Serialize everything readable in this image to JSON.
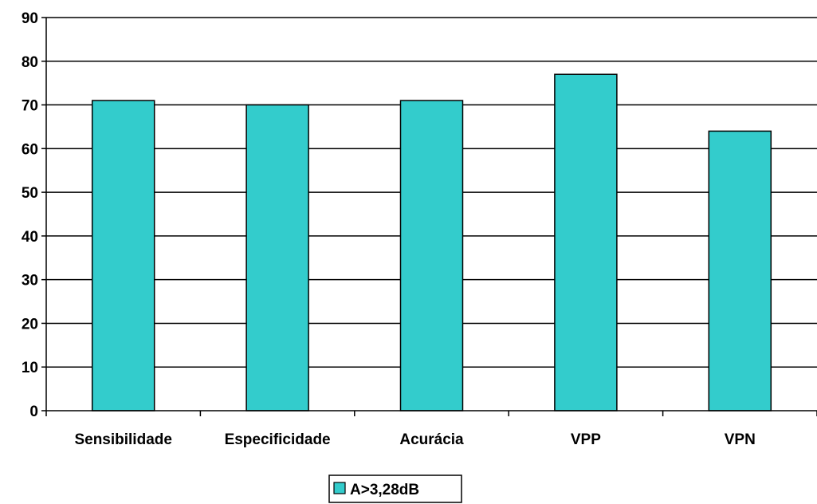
{
  "chart_data": {
    "type": "bar",
    "categories": [
      "Sensibilidade",
      "Especificidade",
      "Acurácia",
      "VPP",
      "VPN"
    ],
    "series": [
      {
        "name": "A>3,28dB",
        "values": [
          71,
          70,
          71,
          77,
          64
        ]
      }
    ],
    "ylim": [
      0,
      90
    ],
    "yticks": [
      0,
      10,
      20,
      30,
      40,
      50,
      60,
      70,
      80,
      90
    ],
    "grid": true,
    "legend_position": "bottom-center",
    "colors": {
      "bar_fill": "#33CCCC",
      "bar_stroke": "#000000",
      "grid": "#000000",
      "background": "#FFFFFF"
    }
  }
}
